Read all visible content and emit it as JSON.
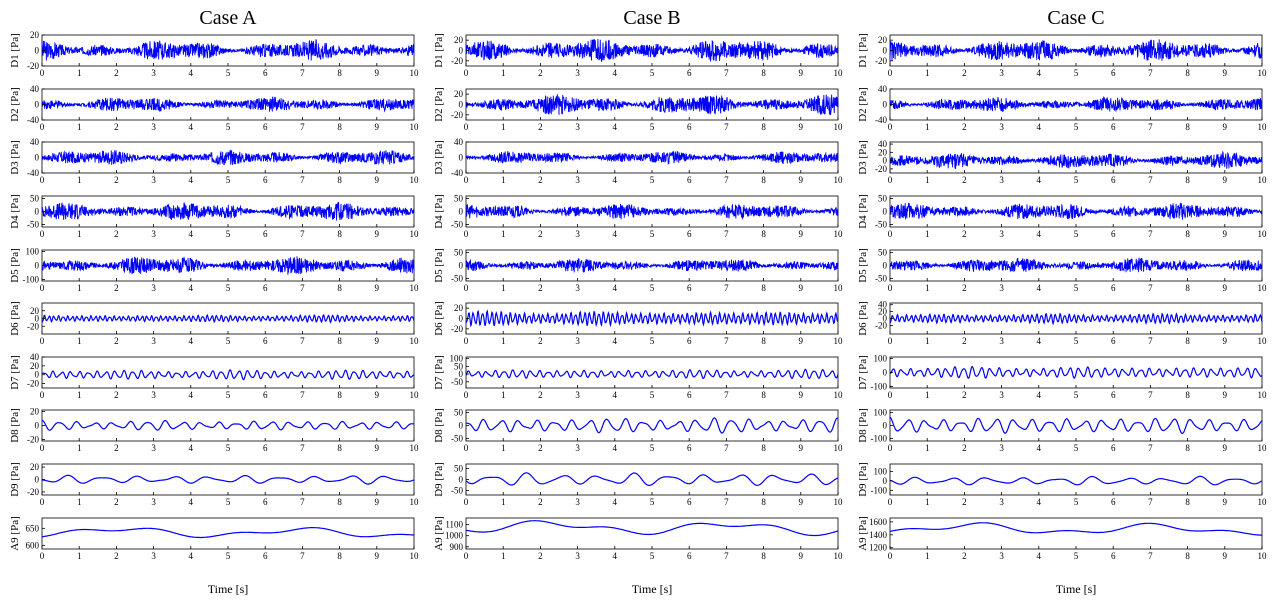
{
  "colors": {
    "signal": "#0000ff",
    "axis": "#000000",
    "background": "#ffffff"
  },
  "x_ticks": [
    "0",
    "1",
    "2",
    "3",
    "4",
    "5",
    "6",
    "7",
    "8",
    "9",
    "10"
  ],
  "chart_data": [
    {
      "type": "line",
      "title": "Case A",
      "xlabel": "Time [s]",
      "xlim": [
        0,
        10
      ],
      "panels": [
        {
          "label": "D1 [Pa]",
          "ylim": [
            -20,
            20
          ],
          "yticks": [
            "20",
            "0",
            "-20"
          ],
          "amp": 8,
          "freq": 90,
          "kind": "noise"
        },
        {
          "label": "D2 [Pa]",
          "ylim": [
            -40,
            40
          ],
          "yticks": [
            "40",
            "0",
            "-40"
          ],
          "amp": 12,
          "freq": 60,
          "kind": "noise"
        },
        {
          "label": "D3 [Pa]",
          "ylim": [
            -40,
            40
          ],
          "yticks": [
            "40",
            "0",
            "-40"
          ],
          "amp": 12,
          "freq": 40,
          "kind": "noise"
        },
        {
          "label": "D4 [Pa]",
          "ylim": [
            -60,
            60
          ],
          "yticks": [
            "50",
            "0",
            "-50"
          ],
          "amp": 22,
          "freq": 25,
          "kind": "noise"
        },
        {
          "label": "D5 [Pa]",
          "ylim": [
            -110,
            110
          ],
          "yticks": [
            "100",
            "0",
            "-100"
          ],
          "amp": 40,
          "freq": 15,
          "kind": "noise"
        },
        {
          "label": "D6 [Pa]",
          "ylim": [
            -40,
            40
          ],
          "yticks": [
            "20",
            "0",
            "-20"
          ],
          "amp": 8,
          "freq": 8,
          "kind": "wave"
        },
        {
          "label": "D7 [Pa]",
          "ylim": [
            -30,
            40
          ],
          "yticks": [
            "40",
            "20",
            "0",
            "-20"
          ],
          "amp": 9,
          "freq": 4.2,
          "kind": "wave"
        },
        {
          "label": "D8 [Pa]",
          "ylim": [
            -22,
            22
          ],
          "yticks": [
            "20",
            "0",
            "-20"
          ],
          "amp": 6,
          "freq": 2.1,
          "kind": "wave"
        },
        {
          "label": "D9 [Pa]",
          "ylim": [
            -25,
            25
          ],
          "yticks": [
            "20",
            "0",
            "-20"
          ],
          "amp": 6,
          "freq": 1.05,
          "kind": "wave"
        },
        {
          "label": "A9 [Pa]",
          "ylim": [
            590,
            680
          ],
          "yticks": [
            "650",
            "600"
          ],
          "base": 640,
          "amp": 20,
          "kind": "trend"
        }
      ]
    },
    {
      "type": "line",
      "title": "Case B",
      "xlabel": "Time [s]",
      "xlim": [
        0,
        10
      ],
      "panels": [
        {
          "label": "D1 [Pa]",
          "ylim": [
            -30,
            30
          ],
          "yticks": [
            "20",
            "0",
            "-20"
          ],
          "amp": 14,
          "freq": 90,
          "kind": "noise"
        },
        {
          "label": "D2 [Pa]",
          "ylim": [
            -30,
            30
          ],
          "yticks": [
            "20",
            "0",
            "-20"
          ],
          "amp": 12,
          "freq": 60,
          "kind": "noise"
        },
        {
          "label": "D3 [Pa]",
          "ylim": [
            -40,
            40
          ],
          "yticks": [
            "40",
            "0",
            "-40"
          ],
          "amp": 10,
          "freq": 40,
          "kind": "noise"
        },
        {
          "label": "D4 [Pa]",
          "ylim": [
            -60,
            60
          ],
          "yticks": [
            "50",
            "0",
            "-50"
          ],
          "amp": 18,
          "freq": 25,
          "kind": "noise"
        },
        {
          "label": "D5 [Pa]",
          "ylim": [
            -60,
            60
          ],
          "yticks": [
            "50",
            "0",
            "-50"
          ],
          "amp": 16,
          "freq": 15,
          "kind": "noise"
        },
        {
          "label": "D6 [Pa]",
          "ylim": [
            -30,
            30
          ],
          "yticks": [
            "20",
            "0",
            "-20"
          ],
          "amp": 12,
          "freq": 8,
          "kind": "wave"
        },
        {
          "label": "D7 [Pa]",
          "ylim": [
            -90,
            110
          ],
          "yticks": [
            "100",
            "50",
            "0",
            "-50"
          ],
          "amp": 25,
          "freq": 4.2,
          "kind": "wave"
        },
        {
          "label": "D8 [Pa]",
          "ylim": [
            -60,
            60
          ],
          "yticks": [
            "50",
            "0",
            "-50"
          ],
          "amp": 25,
          "freq": 2.1,
          "kind": "wave"
        },
        {
          "label": "D9 [Pa]",
          "ylim": [
            -70,
            70
          ],
          "yticks": [
            "50",
            "0",
            "-50"
          ],
          "amp": 25,
          "freq": 1.05,
          "kind": "wave"
        },
        {
          "label": "A9 [Pa]",
          "ylim": [
            880,
            1160
          ],
          "yticks": [
            "1100",
            "1000",
            "900"
          ],
          "base": 1080,
          "amp": 80,
          "kind": "trend"
        }
      ]
    },
    {
      "type": "line",
      "title": "Case C",
      "xlabel": "Time [s]",
      "xlim": [
        0,
        10
      ],
      "panels": [
        {
          "label": "D1 [Pa]",
          "ylim": [
            -30,
            30
          ],
          "yticks": [
            "20",
            "0",
            "-20"
          ],
          "amp": 13,
          "freq": 90,
          "kind": "noise"
        },
        {
          "label": "D2 [Pa]",
          "ylim": [
            -40,
            40
          ],
          "yticks": [
            "40",
            "0",
            "-40"
          ],
          "amp": 12,
          "freq": 60,
          "kind": "noise"
        },
        {
          "label": "D3 [Pa]",
          "ylim": [
            -30,
            45
          ],
          "yticks": [
            "40",
            "20",
            "0",
            "-20"
          ],
          "amp": 12,
          "freq": 40,
          "kind": "noise"
        },
        {
          "label": "D4 [Pa]",
          "ylim": [
            -60,
            60
          ],
          "yticks": [
            "50",
            "0",
            "-50"
          ],
          "amp": 20,
          "freq": 25,
          "kind": "noise"
        },
        {
          "label": "D5 [Pa]",
          "ylim": [
            -60,
            60
          ],
          "yticks": [
            "50",
            "0",
            "-50"
          ],
          "amp": 18,
          "freq": 15,
          "kind": "noise"
        },
        {
          "label": "D6 [Pa]",
          "ylim": [
            -45,
            45
          ],
          "yticks": [
            "40",
            "20",
            "0",
            "-20"
          ],
          "amp": 12,
          "freq": 8,
          "kind": "wave"
        },
        {
          "label": "D7 [Pa]",
          "ylim": [
            -110,
            110
          ],
          "yticks": [
            "100",
            "0",
            "-100"
          ],
          "amp": 35,
          "freq": 4.2,
          "kind": "wave"
        },
        {
          "label": "D8 [Pa]",
          "ylim": [
            -120,
            120
          ],
          "yticks": [
            "100",
            "0",
            "-100"
          ],
          "amp": 55,
          "freq": 2.1,
          "kind": "wave"
        },
        {
          "label": "D9 [Pa]",
          "ylim": [
            -150,
            180
          ],
          "yticks": [
            "100",
            "0",
            "-100"
          ],
          "amp": 40,
          "freq": 1.05,
          "kind": "wave"
        },
        {
          "label": "A9 [Pa]",
          "ylim": [
            1180,
            1660
          ],
          "yticks": [
            "1600",
            "1400",
            "1200"
          ],
          "base": 1500,
          "amp": 120,
          "kind": "trend"
        }
      ]
    }
  ]
}
